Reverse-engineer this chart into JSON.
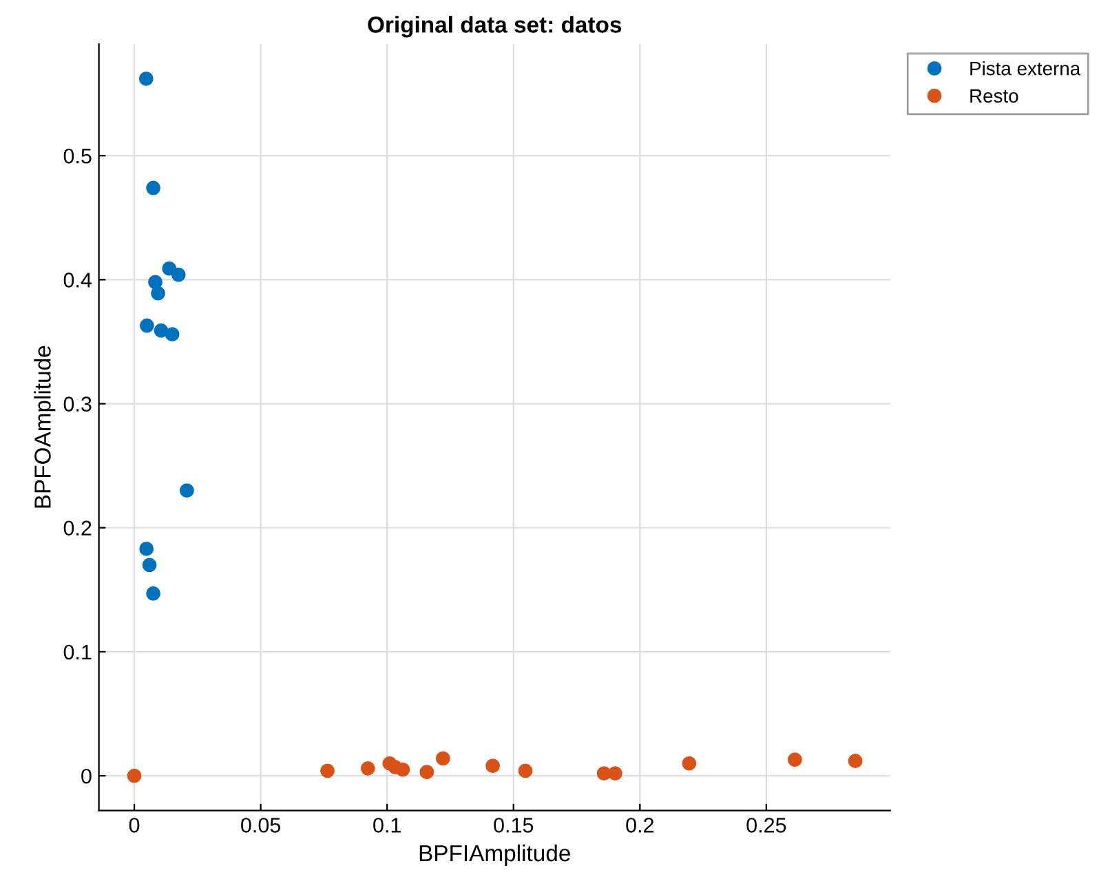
{
  "chart_data": {
    "type": "scatter",
    "title": "Original data set: datos",
    "xlabel": "BPFIAmplitude",
    "ylabel": "BPFOAmplitude",
    "xlim": [
      -0.014,
      0.299
    ],
    "ylim": [
      -0.028,
      0.59
    ],
    "xticks": [
      0,
      0.05,
      0.1,
      0.15,
      0.2,
      0.25
    ],
    "yticks": [
      0,
      0.1,
      0.2,
      0.3,
      0.4,
      0.5
    ],
    "grid": true,
    "legend": "top right",
    "marker": "circle",
    "series": [
      {
        "name": "Pista externa",
        "color": "#0072bd",
        "x": [
          0.0047,
          0.0075,
          0.0138,
          0.0175,
          0.0083,
          0.0094,
          0.005,
          0.0106,
          0.015,
          0.0208,
          0.0048,
          0.006,
          0.0075
        ],
        "values": [
          0.562,
          0.474,
          0.409,
          0.404,
          0.398,
          0.389,
          0.363,
          0.359,
          0.356,
          0.23,
          0.183,
          0.17,
          0.147
        ]
      },
      {
        "name": "Resto",
        "color": "#d95319",
        "x": [
          0,
          0.0764,
          0.0924,
          0.101,
          0.1032,
          0.1062,
          0.1157,
          0.1221,
          0.1418,
          0.1547,
          0.1858,
          0.1902,
          0.2195,
          0.2613,
          0.2852
        ],
        "values": [
          0,
          0.004,
          0.006,
          0.01,
          0.007,
          0.005,
          0.003,
          0.014,
          0.008,
          0.004,
          0.002,
          0.002,
          0.01,
          0.013,
          0.012
        ]
      }
    ]
  }
}
